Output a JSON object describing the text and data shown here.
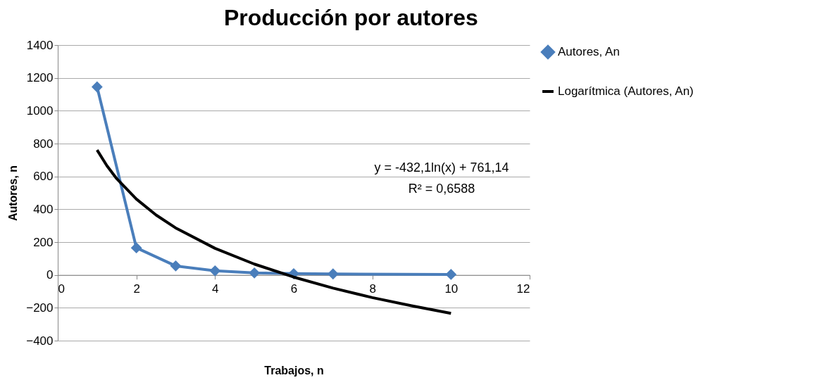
{
  "chart_data": {
    "type": "line",
    "title": "Producción por autores",
    "xlabel": "Trabajos,  n",
    "ylabel": "Autores, n",
    "xlim": [
      0,
      12
    ],
    "xticks": [
      0,
      2,
      4,
      6,
      8,
      10,
      12
    ],
    "ylim": [
      -400,
      1400
    ],
    "yticks": [
      -400,
      -200,
      0,
      200,
      400,
      600,
      800,
      1000,
      1200,
      1400
    ],
    "grid": "y",
    "legend": "right",
    "series": [
      {
        "name": "Autores, An",
        "color": "#4a7ebb",
        "marker": "diamond",
        "x": [
          1,
          2,
          3,
          4,
          5,
          6,
          7,
          10
        ],
        "values": [
          1145,
          165,
          55,
          25,
          12,
          8,
          6,
          3
        ]
      },
      {
        "name": "Logarítmica (Autores, An)",
        "color": "#000000",
        "marker": "none",
        "x": [
          1,
          1.25,
          1.5,
          2,
          2.5,
          3,
          4,
          5,
          6,
          7,
          8,
          9,
          10
        ],
        "values": [
          761,
          665,
          586,
          462,
          365,
          286,
          162,
          66,
          -13,
          -80,
          -138,
          -188,
          -234
        ]
      }
    ],
    "annotations": [
      "y = -432,1ln(x) + 761,14",
      "R² = 0,6588"
    ]
  }
}
